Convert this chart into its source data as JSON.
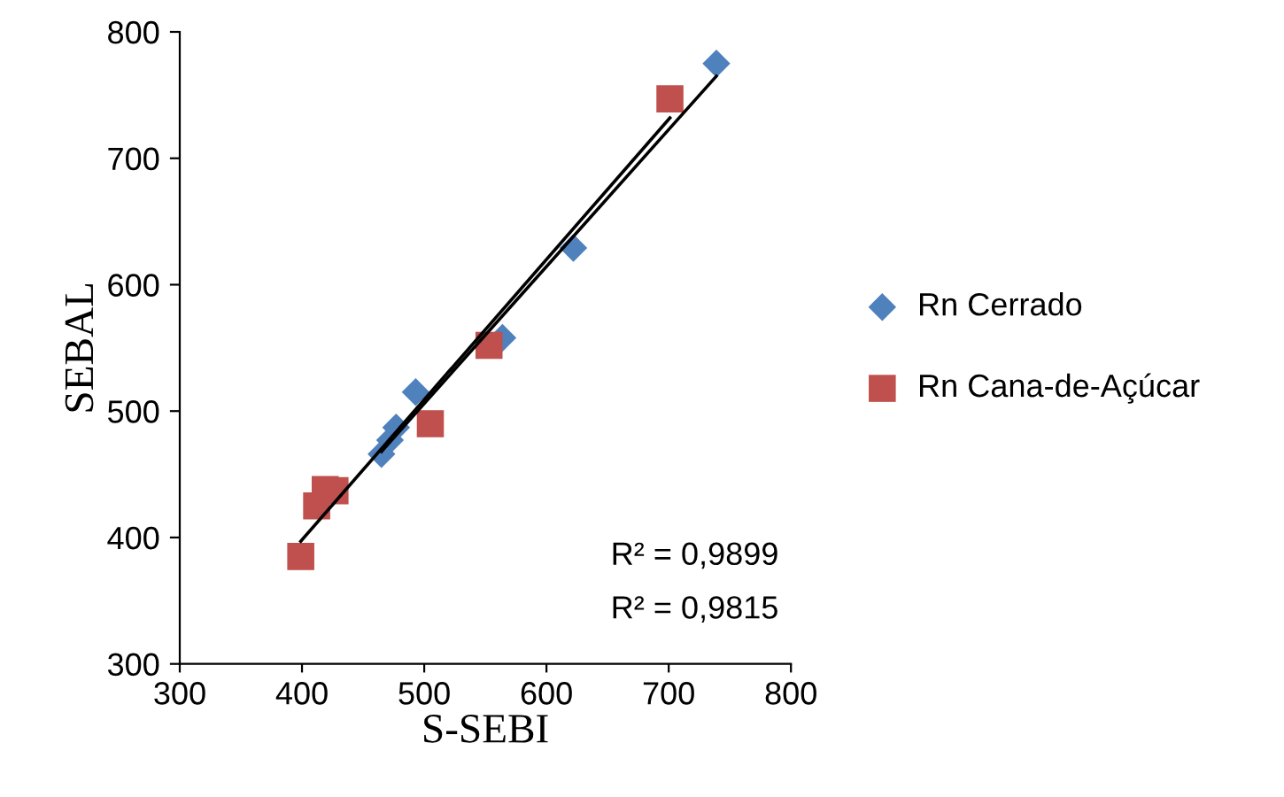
{
  "chart_data": {
    "type": "scatter",
    "xlabel": "S-SEBI",
    "ylabel": "SEBAL",
    "xlim": [
      300,
      800
    ],
    "ylim": [
      300,
      800
    ],
    "xticks": [
      300,
      400,
      500,
      600,
      700,
      800
    ],
    "yticks": [
      300,
      400,
      500,
      600,
      700,
      800
    ],
    "grid": false,
    "legend": "right",
    "series": [
      {
        "name": "Rn Cerrado",
        "color": "#4f81bd",
        "marker": "diamond",
        "x": [
          739,
          622,
          564,
          493,
          477,
          472,
          465
        ],
        "values": [
          775,
          629,
          558,
          515,
          487,
          477,
          466
        ]
      },
      {
        "name": "Rn Cana-de-Açúcar",
        "color": "#c0504d",
        "marker": "square",
        "x": [
          701,
          553,
          505,
          427,
          419,
          412,
          399
        ],
        "values": [
          747,
          552,
          490,
          437,
          438,
          425,
          385
        ]
      },
      {
        "type": "line",
        "color": "#000000",
        "marker": "none",
        "x": [
          465,
          739
        ],
        "values": [
          468,
          765
        ]
      },
      {
        "type": "line",
        "color": "#000000",
        "marker": "none",
        "x": [
          399,
          701
        ],
        "values": [
          397,
          732
        ]
      }
    ],
    "annotations": [
      "R² = 0,9899",
      "R² = 0,9815"
    ]
  }
}
